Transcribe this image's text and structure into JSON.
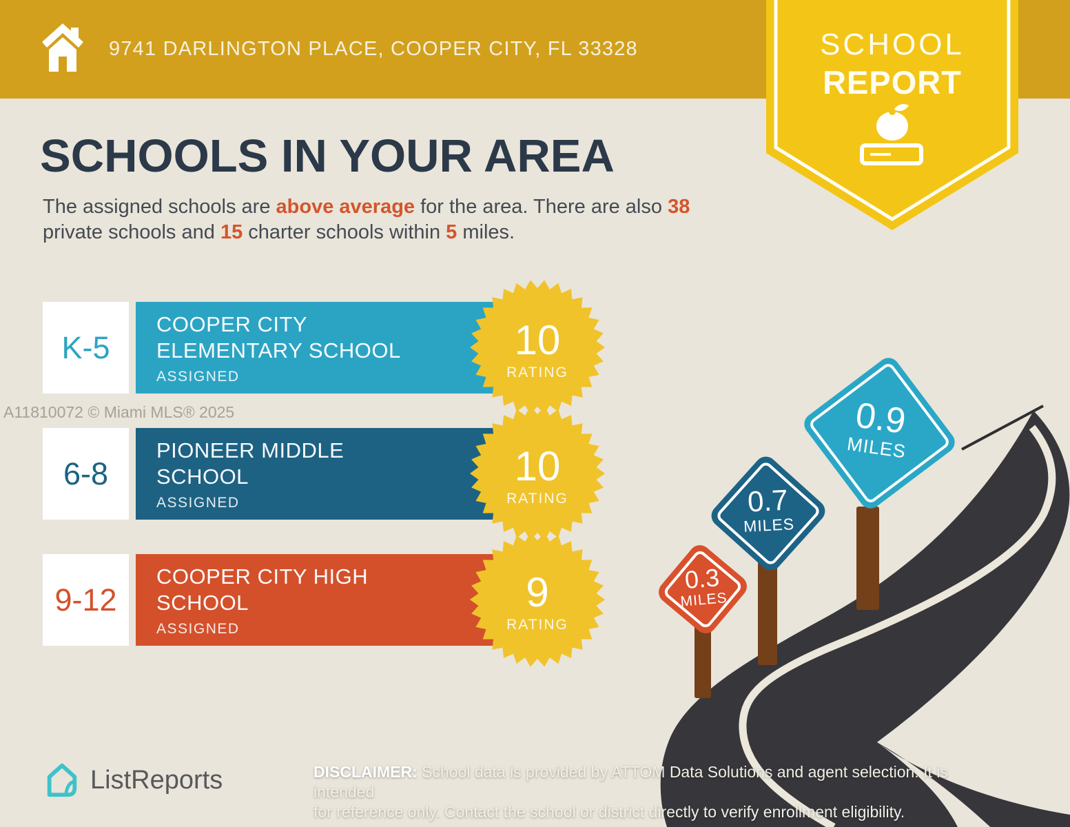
{
  "header": {
    "address": "9741 DARLINGTON PLACE, COOPER CITY, FL 33328"
  },
  "ribbon": {
    "line1": "SCHOOL",
    "line2": "REPORT"
  },
  "intro": {
    "title": "SCHOOLS IN YOUR AREA",
    "seg1": "The assigned schools are ",
    "hl1": "above average",
    "seg2": " for the area. There are also ",
    "hl2": "38",
    "seg3": " private schools and ",
    "hl3": "15",
    "seg4": " charter schools within ",
    "hl4": "5",
    "seg5": " miles."
  },
  "schools": [
    {
      "grades": "K-5",
      "name": "COOPER CITY ELEMENTARY SCHOOL",
      "status": "ASSIGNED",
      "rating": "10",
      "rating_label": "RATING",
      "color": "#2ba4c4"
    },
    {
      "grades": "6-8",
      "name": "PIONEER MIDDLE SCHOOL",
      "status": "ASSIGNED",
      "rating": "10",
      "rating_label": "RATING",
      "color": "#1d6283"
    },
    {
      "grades": "9-12",
      "name": "COOPER CITY HIGH SCHOOL",
      "status": "ASSIGNED",
      "rating": "9",
      "rating_label": "RATING",
      "color": "#d4502b"
    }
  ],
  "signs": [
    {
      "value": "0.3",
      "unit": "MILES",
      "color": "#d9502c"
    },
    {
      "value": "0.7",
      "unit": "MILES",
      "color": "#1d6386"
    },
    {
      "value": "0.9",
      "unit": "MILES",
      "color": "#2aa7c7"
    }
  ],
  "watermark": "A11810072 © Miami MLS® 2025",
  "footer": {
    "brand": "ListReports",
    "disclaimer_label": "DISCLAIMER:",
    "disclaimer_line1": " School data is provided by ATTOM Data Solutions and agent selection. It is intended",
    "disclaimer_line2": "for reference only. Contact the school or district directly to verify enrollment eligibility."
  },
  "colors": {
    "background": "#e9e5da",
    "topbar_gold": "#d2a01d",
    "ribbon_yellow": "#f3c517",
    "badge_yellow": "#f0c32b",
    "heading_navy": "#2b3949",
    "accent_orange": "#d4552c",
    "road_dark": "#37363a",
    "road_line_cream": "#ebe7db",
    "post_brown": "#744019",
    "brand_teal": "#3ec2c9"
  }
}
